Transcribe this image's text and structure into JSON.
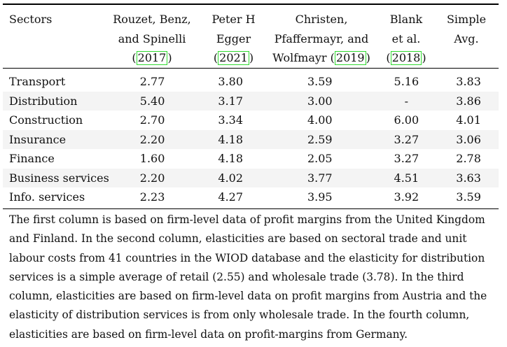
{
  "table": {
    "headers": [
      {
        "lines": [
          "Sectors"
        ]
      },
      {
        "lines": [
          "Rouzet, Benz,",
          "and Spinelli"
        ],
        "cite_pre": "(",
        "cite": "2017",
        "cite_post": ")"
      },
      {
        "lines": [
          "Peter H",
          "Egger"
        ],
        "cite_pre": "(",
        "cite": "2021",
        "cite_post": ")"
      },
      {
        "lines": [
          "Christen,",
          "Pfaffermayr, and"
        ],
        "cite_pre": "Wolfmayr (",
        "cite": "2019",
        "cite_post": ")"
      },
      {
        "lines": [
          "Blank",
          "et al."
        ],
        "cite_pre": "(",
        "cite": "2018",
        "cite_post": ")"
      },
      {
        "lines": [
          "Simple",
          "Avg."
        ]
      }
    ],
    "rows": [
      {
        "sector": "Transport",
        "values": [
          "2.77",
          "3.80",
          "3.59",
          "5.16",
          "3.83"
        ]
      },
      {
        "sector": "Distribution",
        "values": [
          "5.40",
          "3.17",
          "3.00",
          "-",
          "3.86"
        ]
      },
      {
        "sector": "Construction",
        "values": [
          "2.70",
          "3.34",
          "4.00",
          "6.00",
          "4.01"
        ]
      },
      {
        "sector": "Insurance",
        "values": [
          "2.20",
          "4.18",
          "2.59",
          "3.27",
          "3.06"
        ]
      },
      {
        "sector": "Finance",
        "values": [
          "1.60",
          "4.18",
          "2.05",
          "3.27",
          "2.78"
        ]
      },
      {
        "sector": "Business services",
        "values": [
          "2.20",
          "4.02",
          "3.77",
          "4.51",
          "3.63"
        ]
      },
      {
        "sector": "Info. services",
        "values": [
          "2.23",
          "4.27",
          "3.95",
          "3.92",
          "3.59"
        ]
      }
    ]
  },
  "note_lines": [
    "The first column is based on firm-level data of profit margins from the United Kingdom",
    "and Finland. In the second column, elasticities are based on sectoral trade and unit",
    "labour costs from 41 countries in the WIOD database and the elasticity for distribution",
    "services is a simple average of retail (2.55) and wholesale trade (3.78). In the third",
    "column, elasticities are based on firm-level data on profit margins from Austria and the",
    "elasticity of distribution services is from only wholesale trade. In the fourth column,",
    "elasticities are based on firm-level data on profit-margins from Germany."
  ],
  "colors": {
    "citation_box": "#2fd92f",
    "stripe": "#f4f4f4"
  }
}
